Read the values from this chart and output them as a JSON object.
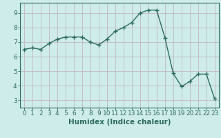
{
  "x": [
    0,
    1,
    2,
    3,
    4,
    5,
    6,
    7,
    8,
    9,
    10,
    11,
    12,
    13,
    14,
    15,
    16,
    17,
    18,
    19,
    20,
    21,
    22,
    23
  ],
  "y": [
    6.5,
    6.6,
    6.5,
    6.9,
    7.2,
    7.35,
    7.35,
    7.35,
    7.0,
    6.8,
    7.2,
    7.75,
    8.0,
    8.35,
    9.0,
    9.2,
    9.2,
    7.3,
    4.85,
    3.95,
    4.3,
    4.8,
    4.8,
    3.1
  ],
  "line_color": "#2e6b5e",
  "bg_color": "#cdecea",
  "grid_color": "#c4b8c0",
  "xlabel": "Humidex (Indice chaleur)",
  "xlim": [
    -0.5,
    23.5
  ],
  "ylim": [
    2.5,
    9.7
  ],
  "yticks": [
    3,
    4,
    5,
    6,
    7,
    8,
    9
  ],
  "xticks": [
    0,
    1,
    2,
    3,
    4,
    5,
    6,
    7,
    8,
    9,
    10,
    11,
    12,
    13,
    14,
    15,
    16,
    17,
    18,
    19,
    20,
    21,
    22,
    23
  ],
  "xtick_labels": [
    "0",
    "1",
    "2",
    "3",
    "4",
    "5",
    "6",
    "7",
    "8",
    "9",
    "10",
    "11",
    "12",
    "13",
    "14",
    "15",
    "16",
    "17",
    "18",
    "19",
    "20",
    "21",
    "22",
    "23"
  ],
  "marker": "+",
  "markersize": 4,
  "linewidth": 1.0,
  "xlabel_fontsize": 7.5,
  "tick_fontsize": 6.5
}
